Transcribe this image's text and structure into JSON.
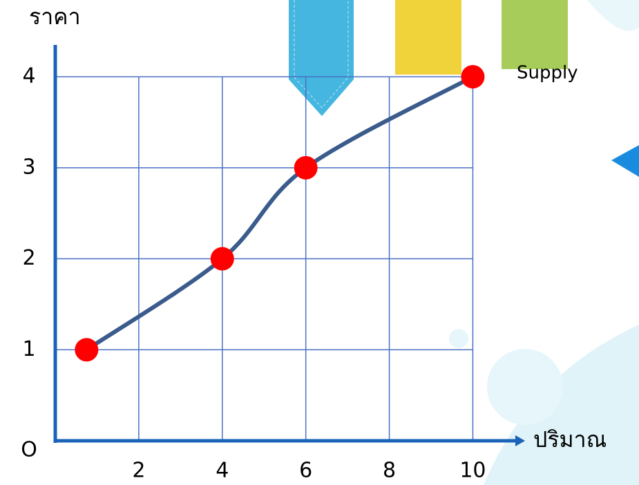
{
  "chart_data": {
    "type": "line",
    "y_label": "ราคา",
    "x_label": "ปริมาณ",
    "origin_label": "O",
    "series": [
      {
        "name": "Supply",
        "color": "#3a5b8c",
        "marker_color": "#ff0000",
        "x": [
          0.75,
          4,
          6,
          10
        ],
        "values": [
          1,
          2,
          3,
          4
        ]
      }
    ],
    "xlim": [
      0,
      11.25
    ],
    "ylim": [
      0,
      4.35
    ],
    "xticks": [
      2,
      4,
      6,
      8,
      10
    ],
    "yticks": [
      1,
      2,
      3,
      4
    ],
    "grid": true,
    "grid_color": "#4a6fc4",
    "axis_color": "#1a63b8"
  }
}
